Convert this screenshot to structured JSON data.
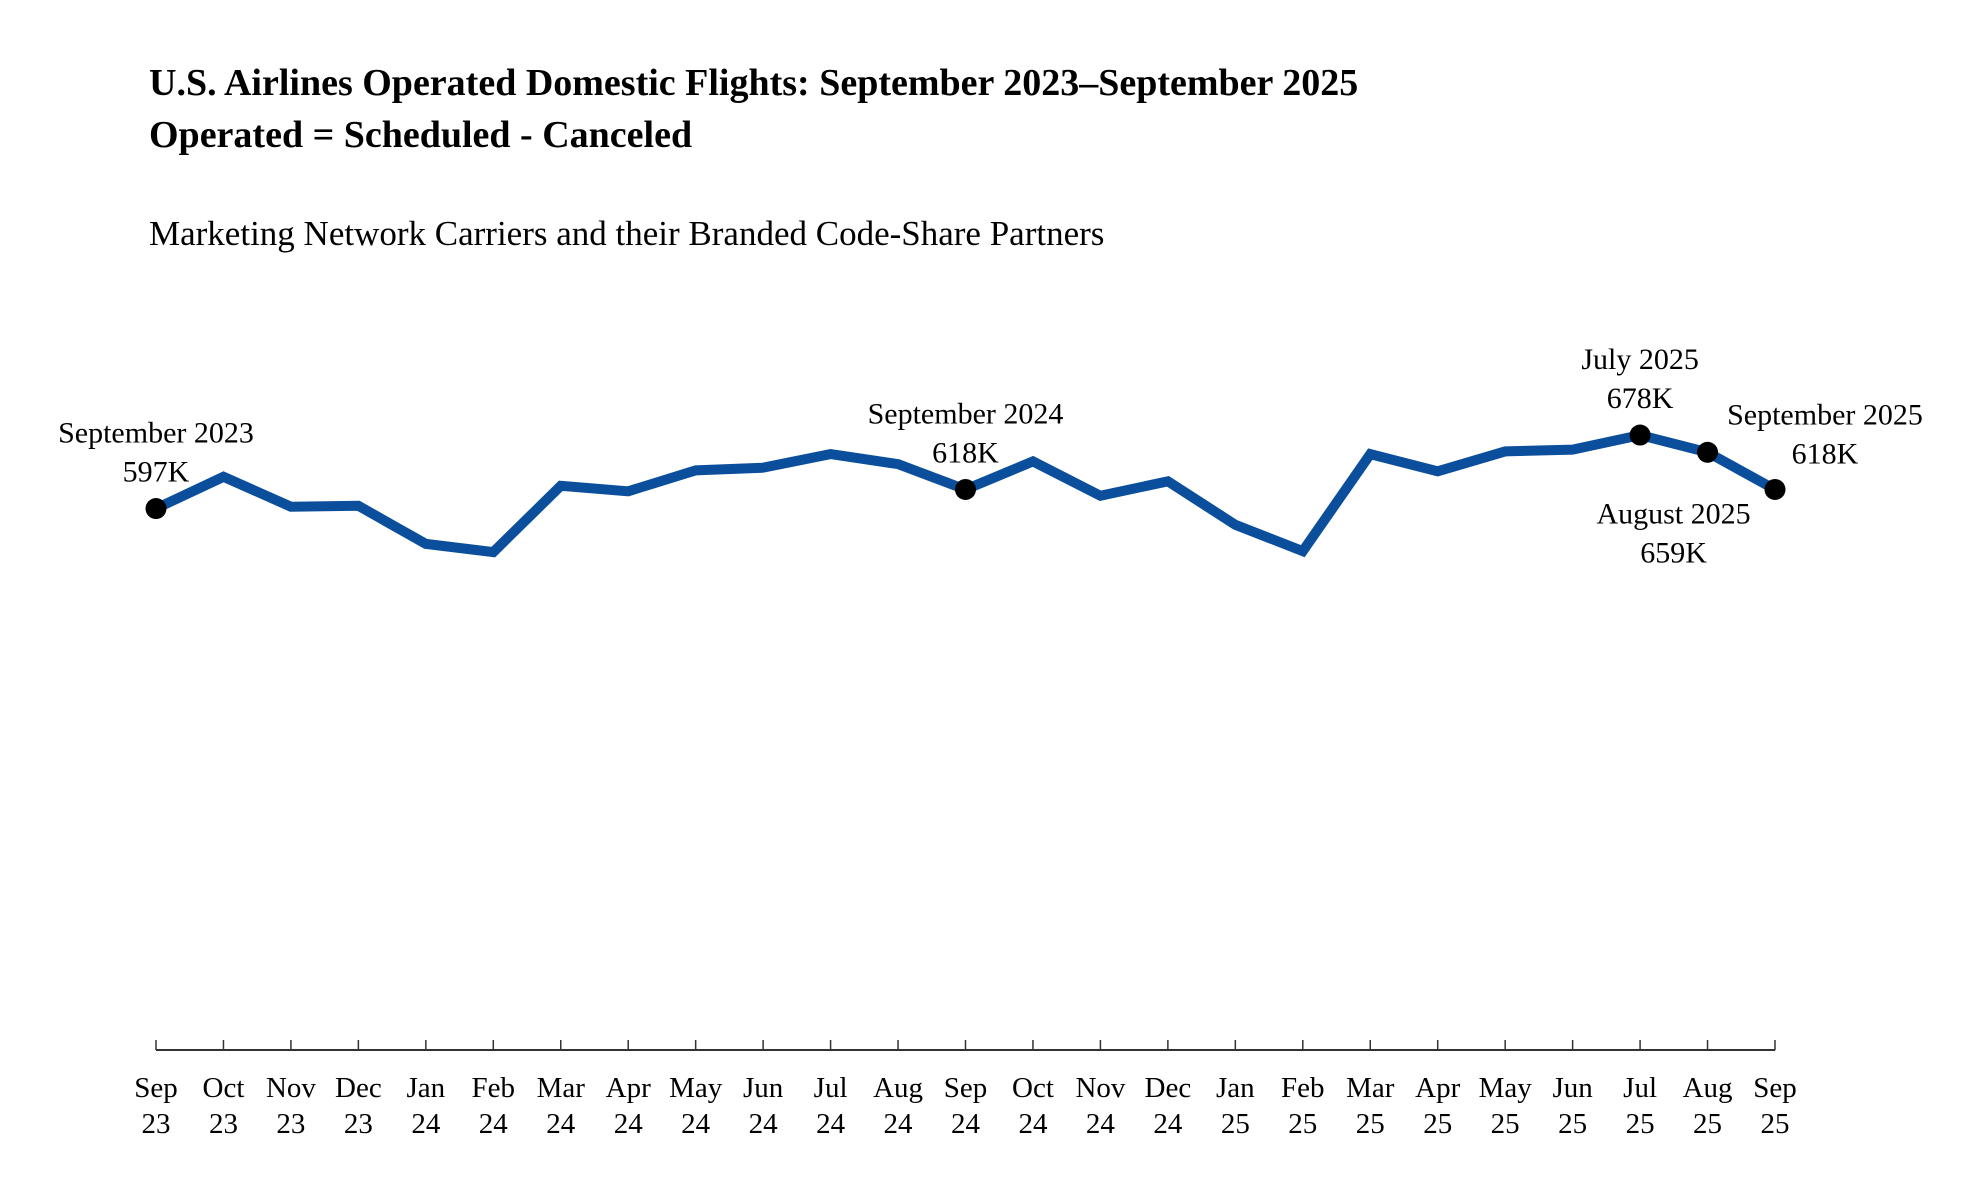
{
  "chart_data": {
    "type": "line",
    "title": "U.S. Airlines Operated Domestic Flights: September 2023–September 2025",
    "title_line2": "Operated = Scheduled - Canceled",
    "subtitle": "Marketing Network Carriers and their Branded Code-Share Partners",
    "xlabel": "",
    "ylabel": "",
    "units": "thousands of flights",
    "ylim": [
      0,
      700
    ],
    "grid": false,
    "line_color": "#0b4f9c",
    "marker_color": "#000000",
    "categories": [
      {
        "month": "Sep",
        "year": "23"
      },
      {
        "month": "Oct",
        "year": "23"
      },
      {
        "month": "Nov",
        "year": "23"
      },
      {
        "month": "Dec",
        "year": "23"
      },
      {
        "month": "Jan",
        "year": "24"
      },
      {
        "month": "Feb",
        "year": "24"
      },
      {
        "month": "Mar",
        "year": "24"
      },
      {
        "month": "Apr",
        "year": "24"
      },
      {
        "month": "May",
        "year": "24"
      },
      {
        "month": "Jun",
        "year": "24"
      },
      {
        "month": "Jul",
        "year": "24"
      },
      {
        "month": "Aug",
        "year": "24"
      },
      {
        "month": "Sep",
        "year": "24"
      },
      {
        "month": "Oct",
        "year": "24"
      },
      {
        "month": "Nov",
        "year": "24"
      },
      {
        "month": "Dec",
        "year": "24"
      },
      {
        "month": "Jan",
        "year": "25"
      },
      {
        "month": "Feb",
        "year": "25"
      },
      {
        "month": "Mar",
        "year": "25"
      },
      {
        "month": "Apr",
        "year": "25"
      },
      {
        "month": "May",
        "year": "25"
      },
      {
        "month": "Jun",
        "year": "25"
      },
      {
        "month": "Jul",
        "year": "25"
      },
      {
        "month": "Aug",
        "year": "25"
      },
      {
        "month": "Sep",
        "year": "25"
      }
    ],
    "values": [
      597,
      632,
      599,
      600,
      558,
      549,
      622,
      616,
      639,
      642,
      657,
      646,
      618,
      649,
      611,
      627,
      579,
      550,
      657,
      638,
      660,
      662,
      678,
      659,
      618
    ],
    "annotations": [
      {
        "index": 0,
        "label": "September 2023",
        "value_label": "597K",
        "position": "above"
      },
      {
        "index": 12,
        "label": "September 2024",
        "value_label": "618K",
        "position": "above"
      },
      {
        "index": 22,
        "label": "July 2025",
        "value_label": "678K",
        "position": "above"
      },
      {
        "index": 23,
        "label": "August 2025",
        "value_label": "659K",
        "position": "below"
      },
      {
        "index": 24,
        "label": "September 2025",
        "value_label": "618K",
        "position": "above-right"
      }
    ]
  }
}
